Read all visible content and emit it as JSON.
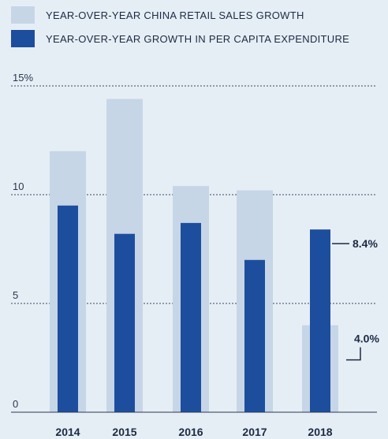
{
  "chart_data": {
    "type": "bar",
    "categories": [
      "2014",
      "2015",
      "2016",
      "2017",
      "2018"
    ],
    "series": [
      {
        "name": "YEAR-OVER-YEAR CHINA RETAIL SALES GROWTH",
        "values": [
          12.0,
          14.4,
          10.4,
          10.2,
          4.0
        ],
        "color": "#c6d6e7"
      },
      {
        "name": "YEAR-OVER-YEAR GROWTH IN PER CAPITA EXPENDITURE",
        "values": [
          9.5,
          8.2,
          8.7,
          7.0,
          8.4
        ],
        "color": "#1d4e9e"
      }
    ],
    "y_ticks": [
      {
        "value": 0,
        "label": "0"
      },
      {
        "value": 5,
        "label": "5"
      },
      {
        "value": 10,
        "label": "10"
      },
      {
        "value": 15,
        "label": "15%"
      }
    ],
    "annotations": [
      {
        "label": "8.4%",
        "series": 1,
        "category": "2018"
      },
      {
        "label": "4.0%",
        "series": 0,
        "category": "2018"
      }
    ],
    "ylim": [
      0,
      15
    ],
    "grid": true,
    "legend_position": "top-left"
  }
}
